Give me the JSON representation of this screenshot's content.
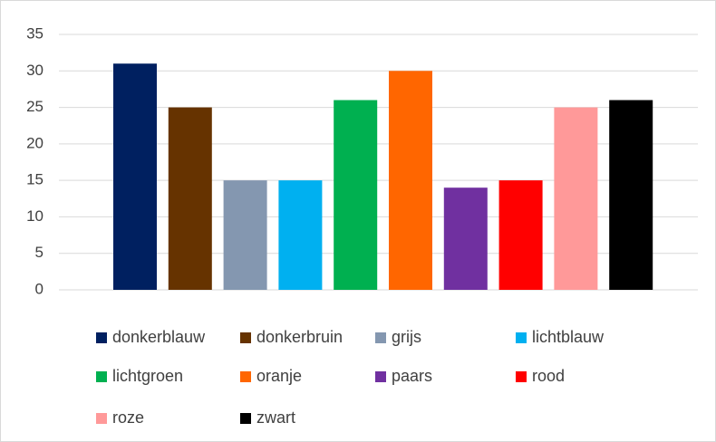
{
  "chart_data": {
    "type": "bar",
    "categories": [
      "donkerblauw",
      "donkerbruin",
      "grijs",
      "lichtblauw",
      "lichtgroen",
      "oranje",
      "paars",
      "rood",
      "roze",
      "zwart"
    ],
    "values": [
      31,
      25,
      15,
      15,
      26,
      30,
      14,
      15,
      25,
      26
    ],
    "colors": [
      "#002060",
      "#663300",
      "#8497b0",
      "#00b0f0",
      "#00b050",
      "#ff6600",
      "#7030a0",
      "#ff0000",
      "#ff9999",
      "#000000"
    ],
    "ylim": [
      0,
      35
    ],
    "yticks": [
      0,
      5,
      10,
      15,
      20,
      25,
      30,
      35
    ],
    "grid": true,
    "legend": "bottom"
  }
}
